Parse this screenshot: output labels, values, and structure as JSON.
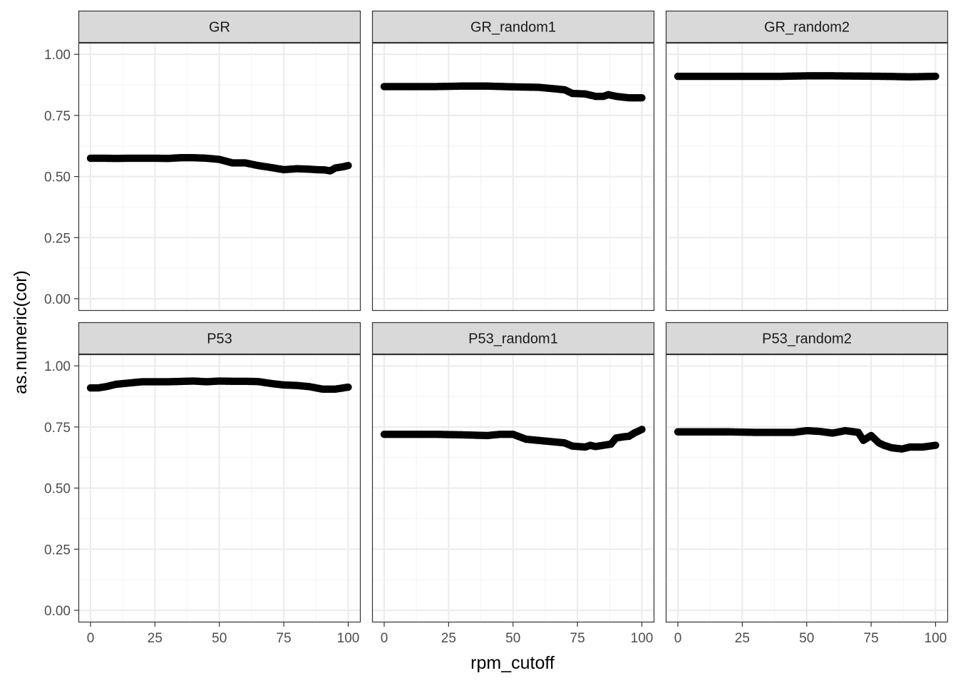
{
  "chart_data": {
    "type": "scatter",
    "facet_layout": "2x3",
    "xlabel": "rpm_cutoff",
    "ylabel": "as.numeric(cor)",
    "xlim": [
      0,
      100
    ],
    "ylim": [
      0,
      1
    ],
    "x_ticks": [
      "0",
      "25",
      "50",
      "75",
      "100"
    ],
    "y_ticks": [
      "0.00",
      "0.25",
      "0.50",
      "0.75",
      "1.00"
    ],
    "grid": true,
    "point_color": "#000000",
    "panel_border_color": "#333333",
    "strip_fill": "#d9d9d9",
    "grid_major_color": "#ebebeb",
    "panels": [
      {
        "title": "GR",
        "points": [
          [
            0,
            0.575
          ],
          [
            5,
            0.575
          ],
          [
            10,
            0.574
          ],
          [
            15,
            0.575
          ],
          [
            20,
            0.575
          ],
          [
            25,
            0.575
          ],
          [
            30,
            0.574
          ],
          [
            35,
            0.577
          ],
          [
            40,
            0.577
          ],
          [
            45,
            0.575
          ],
          [
            50,
            0.57
          ],
          [
            55,
            0.556
          ],
          [
            60,
            0.556
          ],
          [
            65,
            0.545
          ],
          [
            70,
            0.537
          ],
          [
            75,
            0.528
          ],
          [
            80,
            0.532
          ],
          [
            85,
            0.53
          ],
          [
            88,
            0.528
          ],
          [
            91,
            0.527
          ],
          [
            93,
            0.523
          ],
          [
            95,
            0.535
          ],
          [
            98,
            0.54
          ],
          [
            100,
            0.545
          ]
        ]
      },
      {
        "title": "GR_random1",
        "points": [
          [
            0,
            0.868
          ],
          [
            10,
            0.868
          ],
          [
            20,
            0.868
          ],
          [
            30,
            0.87
          ],
          [
            40,
            0.87
          ],
          [
            50,
            0.867
          ],
          [
            60,
            0.865
          ],
          [
            65,
            0.86
          ],
          [
            70,
            0.855
          ],
          [
            73,
            0.84
          ],
          [
            78,
            0.838
          ],
          [
            82,
            0.828
          ],
          [
            85,
            0.828
          ],
          [
            87,
            0.835
          ],
          [
            90,
            0.828
          ],
          [
            95,
            0.822
          ],
          [
            100,
            0.822
          ]
        ]
      },
      {
        "title": "GR_random2",
        "points": [
          [
            0,
            0.91
          ],
          [
            10,
            0.91
          ],
          [
            20,
            0.91
          ],
          [
            30,
            0.91
          ],
          [
            40,
            0.91
          ],
          [
            50,
            0.912
          ],
          [
            60,
            0.912
          ],
          [
            70,
            0.911
          ],
          [
            80,
            0.91
          ],
          [
            90,
            0.908
          ],
          [
            100,
            0.91
          ]
        ]
      },
      {
        "title": "P53",
        "points": [
          [
            0,
            0.91
          ],
          [
            3,
            0.91
          ],
          [
            6,
            0.915
          ],
          [
            10,
            0.925
          ],
          [
            15,
            0.93
          ],
          [
            20,
            0.935
          ],
          [
            30,
            0.935
          ],
          [
            40,
            0.938
          ],
          [
            45,
            0.935
          ],
          [
            50,
            0.938
          ],
          [
            55,
            0.937
          ],
          [
            60,
            0.937
          ],
          [
            65,
            0.936
          ],
          [
            70,
            0.928
          ],
          [
            75,
            0.922
          ],
          [
            80,
            0.92
          ],
          [
            85,
            0.915
          ],
          [
            90,
            0.905
          ],
          [
            95,
            0.905
          ],
          [
            100,
            0.913
          ]
        ]
      },
      {
        "title": "P53_random1",
        "points": [
          [
            0,
            0.72
          ],
          [
            10,
            0.72
          ],
          [
            20,
            0.72
          ],
          [
            30,
            0.718
          ],
          [
            40,
            0.715
          ],
          [
            45,
            0.72
          ],
          [
            50,
            0.72
          ],
          [
            55,
            0.7
          ],
          [
            60,
            0.695
          ],
          [
            65,
            0.69
          ],
          [
            70,
            0.685
          ],
          [
            73,
            0.672
          ],
          [
            78,
            0.668
          ],
          [
            80,
            0.675
          ],
          [
            82,
            0.67
          ],
          [
            85,
            0.675
          ],
          [
            88,
            0.68
          ],
          [
            90,
            0.705
          ],
          [
            93,
            0.71
          ],
          [
            95,
            0.712
          ],
          [
            97,
            0.725
          ],
          [
            100,
            0.74
          ]
        ]
      },
      {
        "title": "P53_random2",
        "points": [
          [
            0,
            0.73
          ],
          [
            10,
            0.73
          ],
          [
            20,
            0.73
          ],
          [
            30,
            0.728
          ],
          [
            40,
            0.728
          ],
          [
            45,
            0.728
          ],
          [
            50,
            0.735
          ],
          [
            55,
            0.732
          ],
          [
            60,
            0.725
          ],
          [
            65,
            0.735
          ],
          [
            70,
            0.728
          ],
          [
            72,
            0.695
          ],
          [
            75,
            0.715
          ],
          [
            78,
            0.685
          ],
          [
            80,
            0.675
          ],
          [
            83,
            0.665
          ],
          [
            87,
            0.66
          ],
          [
            90,
            0.668
          ],
          [
            95,
            0.668
          ],
          [
            100,
            0.675
          ]
        ]
      }
    ]
  }
}
